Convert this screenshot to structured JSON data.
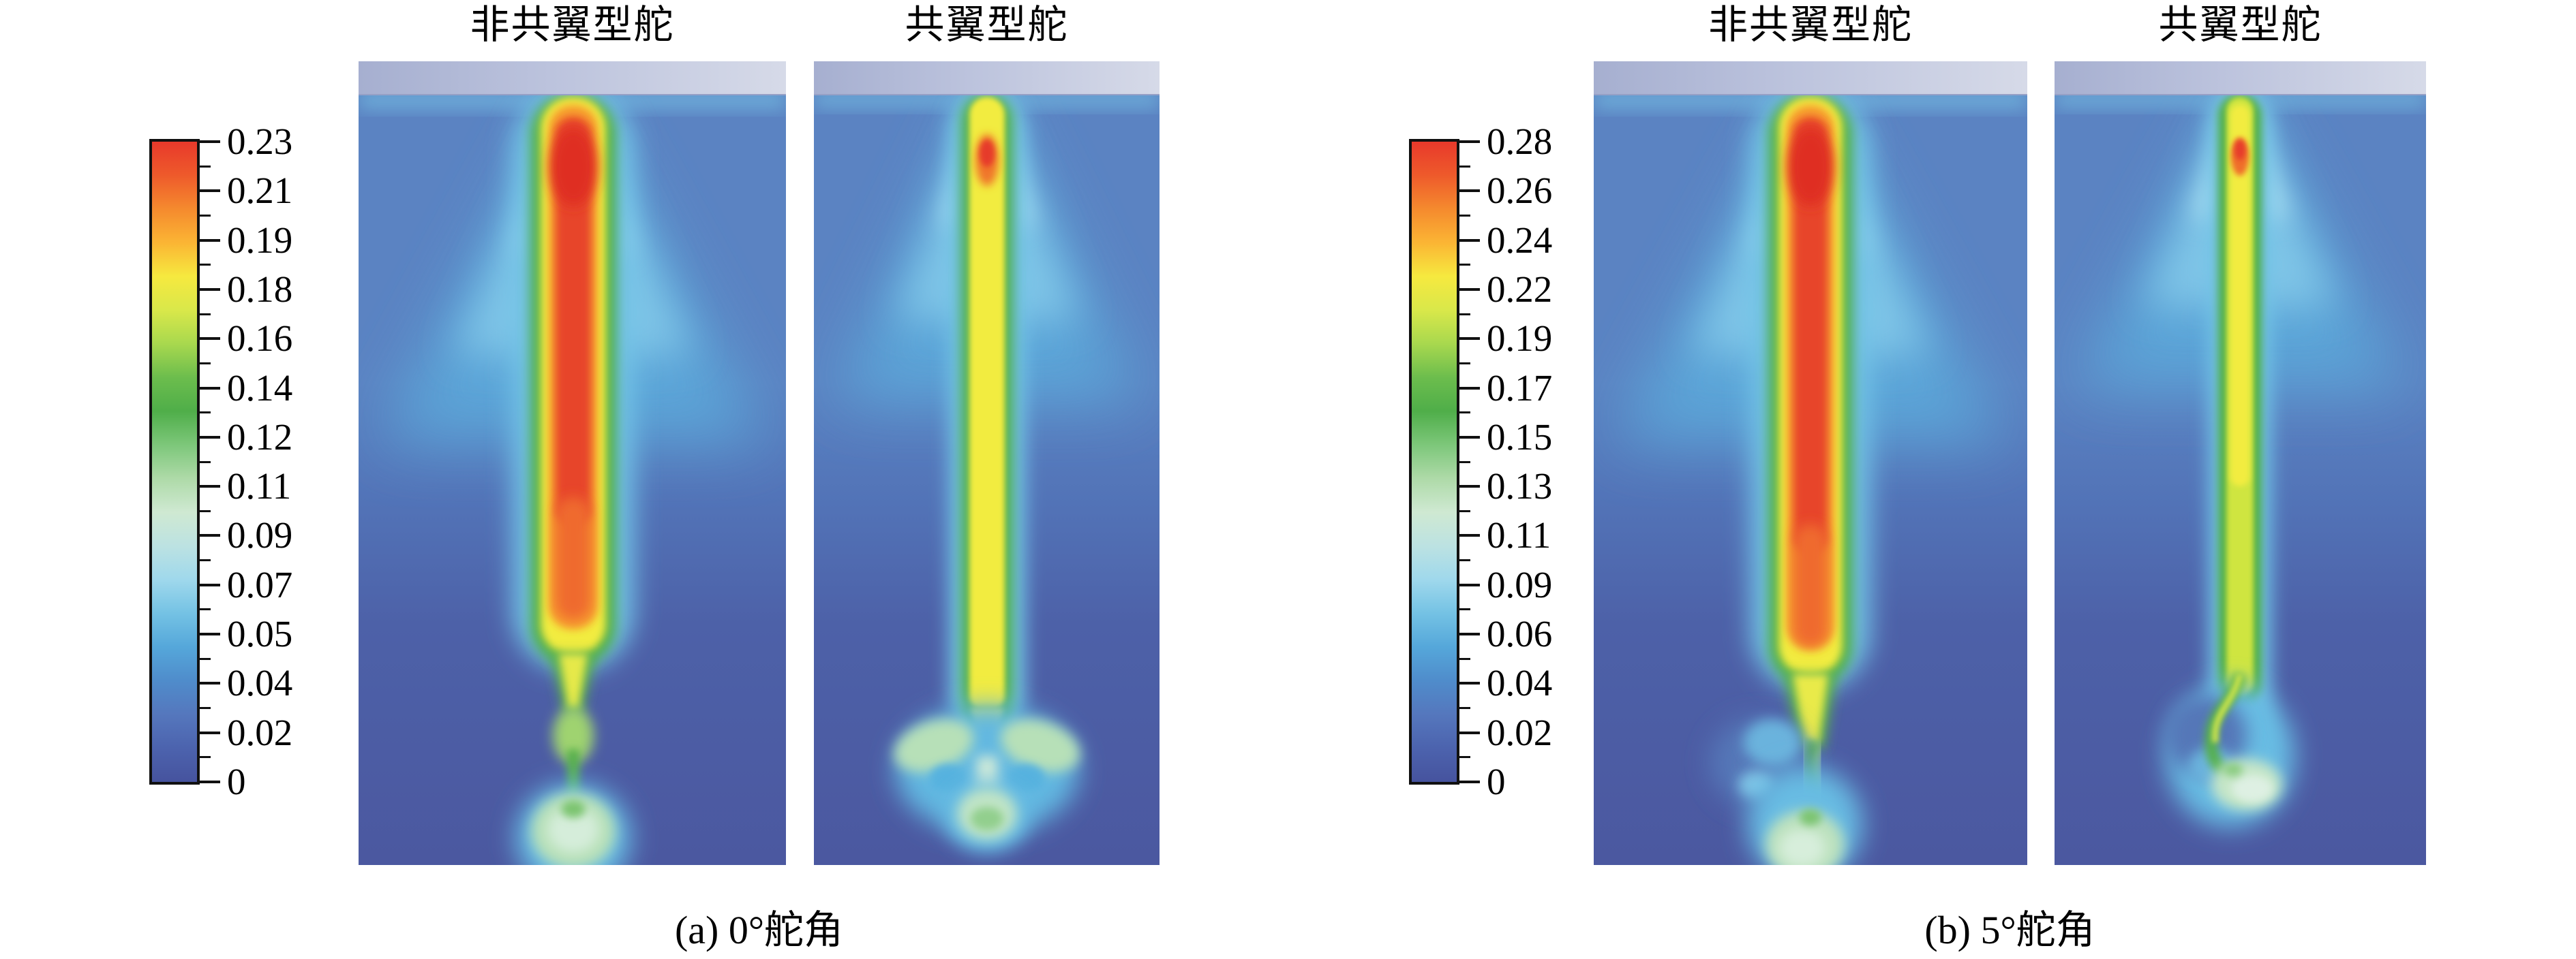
{
  "figure_type": "CFD wake contour comparison figure",
  "figures": [
    {
      "id": "a",
      "caption": "(a) 0°舵角",
      "panels": [
        {
          "title": "非共翼型舵"
        },
        {
          "title": "共翼型舵"
        }
      ],
      "colorbar": {
        "ticks": [
          "0.23",
          "0.21",
          "0.19",
          "0.18",
          "0.16",
          "0.14",
          "0.12",
          "0.11",
          "0.09",
          "0.07",
          "0.05",
          "0.04",
          "0.02",
          "0"
        ]
      }
    },
    {
      "id": "b",
      "caption": "(b) 5°舵角",
      "panels": [
        {
          "title": "非共翼型舵"
        },
        {
          "title": "共翼型舵"
        }
      ],
      "colorbar": {
        "ticks": [
          "0.28",
          "0.26",
          "0.24",
          "0.22",
          "0.19",
          "0.17",
          "0.15",
          "0.13",
          "0.11",
          "0.09",
          "0.06",
          "0.04",
          "0.02",
          "0"
        ]
      }
    }
  ],
  "colors": {
    "scale_top_to_bottom": [
      "#e8392b",
      "#ee5a2b",
      "#f58a2e",
      "#fbb534",
      "#f6e93f",
      "#d9e84a",
      "#a8d84e",
      "#6cbd4d",
      "#4fae49",
      "#7dc77a",
      "#aedaa8",
      "#cfe9d2",
      "#bce2e2",
      "#9fd8ec",
      "#74c2e4",
      "#55a7da",
      "#4f8ccb",
      "#5577bd",
      "#4c63ae",
      "#46539e"
    ],
    "field_top": "#5b83c2",
    "field_bottom": "#4b58a0",
    "hull_strip_left": "#a6afd0",
    "hull_strip_right": "#d6dae8",
    "jet_core_red": "#e7452c",
    "jet_yellow": "#f2ec41",
    "jet_green_edge": "#4fae4a",
    "wake_blob_pale_green": "#bfe3c0"
  },
  "chart_data": [
    {
      "type": "heatmap",
      "title": "(a) 0°舵角",
      "panels": [
        "非共翼型舵",
        "共翼型舵"
      ],
      "legend_levels": [
        0,
        0.02,
        0.04,
        0.05,
        0.07,
        0.09,
        0.11,
        0.12,
        0.14,
        0.16,
        0.18,
        0.19,
        0.21,
        0.23
      ],
      "legend_range": [
        0,
        0.23
      ],
      "legend_position": "left",
      "notes": "Vertical turbulent wake jet below hull; 非共翼型舵 panel shows wide red core (~0.23) extending ~62% depth with trailing green stem and pale-green vortex blobs; 共翼型舵 panel shows thinner yellow core (~0.18) with small red spot at top and mushroom-shaped pale-green vortex pair near 80% depth."
    },
    {
      "type": "heatmap",
      "title": "(b) 5°舵角",
      "panels": [
        "非共翼型舵",
        "共翼型舵"
      ],
      "legend_levels": [
        0,
        0.02,
        0.04,
        0.06,
        0.09,
        0.11,
        0.13,
        0.15,
        0.17,
        0.19,
        0.22,
        0.24,
        0.26,
        0.28
      ],
      "legend_range": [
        0,
        0.28
      ],
      "legend_position": "left",
      "notes": "At 5° rudder angle wakes deform: 非共翼型舵 red core (~0.28) extends ~63% depth then S-curved green tail with offset pale-green blob; 共翼型舵 shows thin yellow-green jet ending ~66% depth with leftward curling vortex hook and pale-green blob."
    }
  ]
}
